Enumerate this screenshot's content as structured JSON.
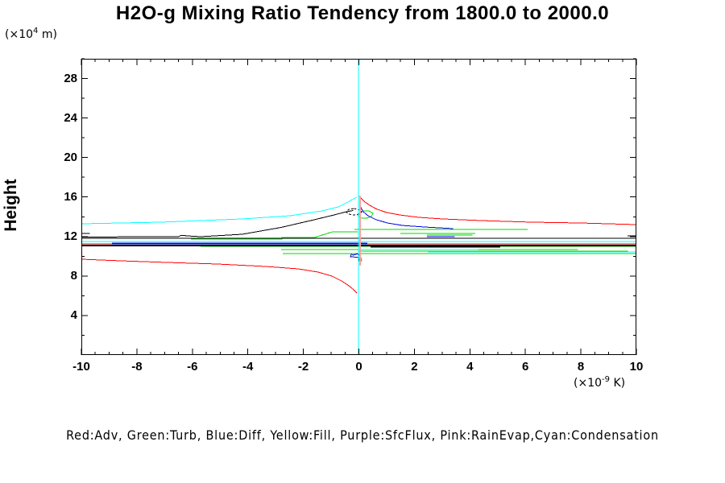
{
  "title": "H2O-g Mixing Ratio Tendency from 1800.0 to 2000.0",
  "y_unit": {
    "prefix": "(×10",
    "sup": "4",
    "suffix": " m)"
  },
  "x_unit": {
    "prefix": "(×10",
    "sup": "-9",
    "suffix": " K)"
  },
  "legend_text": "Red:Adv, Green:Turb, Blue:Diff, Yellow:Fill, Purple:SfcFlux, Pink:RainEvap,Cyan:Condensation",
  "colors": {
    "red": "#ff0000",
    "green": "#00d800",
    "blue": "#0000dd",
    "cyan": "#00ffff",
    "pink": "#ffa0a0",
    "black": "#000000",
    "axis": "#000000"
  },
  "chart_data": {
    "type": "line",
    "title": "H2O-g Mixing Ratio Tendency from 1800.0 to 2000.0",
    "xlabel": "(×10^-9 K)",
    "ylabel": "Height (×10^4 m)",
    "xlim": [
      -10,
      10
    ],
    "ylim": [
      0,
      30
    ],
    "grid": false,
    "legend_position": "bottom",
    "x_major_ticks": [
      -10,
      -8,
      -6,
      -4,
      -2,
      0,
      2,
      4,
      6,
      8,
      10
    ],
    "x_minor_step": 0.5,
    "y_major_ticks": [
      4,
      8,
      12,
      16,
      20,
      24,
      28
    ],
    "y_minor_ticks": [
      2,
      6,
      10,
      14,
      18,
      22,
      26,
      30
    ],
    "series": [
      {
        "name": "adv-upper-branch",
        "legend": "Adv",
        "color": "red",
        "w": 1,
        "points": [
          [
            0.01,
            16.14
          ],
          [
            0.1,
            15.82
          ],
          [
            0.22,
            15.49
          ],
          [
            0.39,
            15.16
          ],
          [
            0.65,
            14.76
          ],
          [
            1.0,
            14.43
          ],
          [
            1.49,
            14.18
          ],
          [
            2.16,
            13.94
          ],
          [
            3.03,
            13.78
          ],
          [
            4.48,
            13.61
          ],
          [
            6.23,
            13.45
          ],
          [
            7.97,
            13.37
          ],
          [
            10,
            13.21
          ]
        ]
      },
      {
        "name": "adv-lower-branch",
        "legend": "Adv",
        "color": "red",
        "w": 1,
        "points": [
          [
            -10,
            9.7
          ],
          [
            -8.58,
            9.54
          ],
          [
            -6.84,
            9.37
          ],
          [
            -5.09,
            9.21
          ],
          [
            -3.35,
            8.97
          ],
          [
            -2.19,
            8.72
          ],
          [
            -1.47,
            8.4
          ],
          [
            -0.97,
            7.99
          ],
          [
            -0.62,
            7.5
          ],
          [
            -0.36,
            7.01
          ],
          [
            -0.19,
            6.6
          ],
          [
            -0.07,
            6.28
          ]
        ]
      },
      {
        "name": "adv-band-line",
        "legend": "Adv",
        "color": "red",
        "w": 1,
        "points": [
          [
            -10,
            11.25
          ],
          [
            10,
            11.25
          ]
        ]
      },
      {
        "name": "turb-left-steps",
        "legend": "Turb",
        "color": "green",
        "w": 1,
        "points": [
          [
            -6.05,
            11.74
          ],
          [
            -2.77,
            11.74
          ],
          [
            -2.77,
            11.9
          ],
          [
            -1.6,
            11.9
          ],
          [
            -0.95,
            12.47
          ],
          [
            -0.04,
            12.47
          ]
        ]
      },
      {
        "name": "turb-center-loop",
        "legend": "Turb",
        "color": "green",
        "w": 1,
        "points": [
          [
            -0.04,
            14.1
          ],
          [
            0.04,
            14.43
          ],
          [
            0.19,
            14.59
          ],
          [
            0.36,
            14.59
          ],
          [
            0.51,
            14.35
          ],
          [
            0.45,
            14.02
          ],
          [
            0.28,
            13.86
          ],
          [
            0.1,
            13.86
          ],
          [
            -0.04,
            14.1
          ]
        ]
      },
      {
        "name": "turb-right-long",
        "legend": "Turb",
        "color": "green",
        "w": 1,
        "points": [
          [
            -0.16,
            12.72
          ],
          [
            6.08,
            12.72
          ]
        ]
      },
      {
        "name": "turb-right-step1",
        "legend": "Turb",
        "color": "green",
        "w": 1,
        "points": [
          [
            1.5,
            12.31
          ],
          [
            4.2,
            12.31
          ]
        ]
      },
      {
        "name": "turb-right-step2",
        "legend": "Turb",
        "color": "green",
        "w": 1,
        "points": [
          [
            2.45,
            12.15
          ],
          [
            4.1,
            12.15
          ]
        ]
      },
      {
        "name": "turb-band-1",
        "legend": "Turb",
        "color": "green",
        "w": 1,
        "points": [
          [
            -5.7,
            11.0
          ],
          [
            10,
            11.0
          ]
        ]
      },
      {
        "name": "turb-band-2",
        "legend": "Turb",
        "color": "green",
        "w": 1,
        "points": [
          [
            -2.8,
            10.68
          ],
          [
            7.9,
            10.68
          ]
        ]
      },
      {
        "name": "turb-band-3",
        "legend": "Turb",
        "color": "green",
        "w": 1,
        "points": [
          [
            0,
            10.51
          ],
          [
            9.7,
            10.51
          ]
        ]
      },
      {
        "name": "turb-band-4",
        "legend": "Turb",
        "color": "green",
        "w": 1,
        "points": [
          [
            -2.75,
            10.27
          ],
          [
            10,
            10.27
          ]
        ]
      },
      {
        "name": "turb-mini-loop",
        "legend": "Turb",
        "color": "green",
        "w": 1,
        "points": [
          [
            0.0,
            9.9
          ],
          [
            0.09,
            9.8
          ],
          [
            0.1,
            9.55
          ],
          [
            0.03,
            9.45
          ],
          [
            -0.02,
            9.6
          ],
          [
            0.0,
            9.9
          ]
        ]
      },
      {
        "name": "diff-center-descent",
        "legend": "Diff",
        "color": "blue",
        "w": 1,
        "points": [
          [
            0.04,
            15.41
          ],
          [
            0.07,
            14.92
          ],
          [
            0.16,
            14.51
          ],
          [
            0.33,
            14.1
          ],
          [
            0.62,
            13.7
          ],
          [
            1.03,
            13.37
          ],
          [
            1.58,
            13.12
          ],
          [
            2.37,
            12.96
          ],
          [
            3.4,
            12.8
          ]
        ]
      },
      {
        "name": "diff-right-step",
        "legend": "Diff",
        "color": "blue",
        "w": 1,
        "points": [
          [
            2.45,
            11.98
          ],
          [
            3.45,
            11.98
          ]
        ]
      },
      {
        "name": "diff-band-left",
        "legend": "Diff",
        "color": "blue",
        "w": 2,
        "points": [
          [
            -8.9,
            11.3
          ],
          [
            0.3,
            11.3
          ]
        ]
      },
      {
        "name": "diff-band-right",
        "legend": "Diff",
        "color": "blue",
        "w": 1,
        "points": [
          [
            0.45,
            11.05
          ],
          [
            5.1,
            11.05
          ]
        ]
      },
      {
        "name": "diff-down-spike",
        "legend": "Diff",
        "color": "blue",
        "w": 1,
        "points": [
          [
            0.04,
            10.68
          ],
          [
            0.04,
            10.05
          ],
          [
            -0.05,
            10.25
          ],
          [
            -0.2,
            10.12
          ],
          [
            -0.28,
            10.2
          ],
          [
            -0.3,
            9.95
          ],
          [
            -0.15,
            9.92
          ],
          [
            -0.02,
            9.88
          ],
          [
            0.02,
            9.55
          ],
          [
            0.04,
            9.3
          ]
        ]
      },
      {
        "name": "total-rising-curve",
        "legend": "",
        "color": "black",
        "w": 1,
        "points": [
          [
            -10,
            11.95
          ],
          [
            -6.5,
            11.98
          ],
          [
            -6.4,
            12.12
          ],
          [
            -6.1,
            12.05
          ],
          [
            -5.7,
            11.98
          ],
          [
            -4.2,
            12.23
          ],
          [
            -2.8,
            12.92
          ],
          [
            -1.6,
            13.7
          ],
          [
            -0.9,
            14.18
          ],
          [
            -0.45,
            14.51
          ],
          [
            -0.2,
            14.63
          ]
        ]
      },
      {
        "name": "total-dashed-loop",
        "legend": "",
        "color": "black",
        "w": 1,
        "dash": "3,2",
        "points": [
          [
            -0.18,
            14.83
          ],
          [
            0.02,
            14.72
          ],
          [
            0.1,
            14.5
          ],
          [
            0.02,
            14.28
          ],
          [
            -0.18,
            14.17
          ],
          [
            -0.38,
            14.28
          ],
          [
            -0.46,
            14.5
          ],
          [
            -0.38,
            14.72
          ],
          [
            -0.18,
            14.83
          ]
        ]
      },
      {
        "name": "total-band-line",
        "legend": "",
        "color": "black",
        "w": 1,
        "points": [
          [
            -10,
            11.82
          ],
          [
            10,
            11.82
          ]
        ]
      },
      {
        "name": "total-band-thick",
        "legend": "",
        "color": "black",
        "w": 2,
        "points": [
          [
            -10,
            11.1
          ],
          [
            10,
            11.1
          ]
        ]
      },
      {
        "name": "total-band-right-thick",
        "legend": "",
        "color": "black",
        "w": 2,
        "points": [
          [
            0.42,
            10.95
          ],
          [
            5.1,
            10.95
          ]
        ]
      },
      {
        "name": "total-right-short",
        "legend": "",
        "color": "black",
        "w": 1,
        "points": [
          [
            9.68,
            12.06
          ],
          [
            10,
            12.06
          ]
        ]
      },
      {
        "name": "total-left-short",
        "legend": "",
        "color": "black",
        "w": 1,
        "points": [
          [
            -10,
            12.31
          ],
          [
            -9.7,
            12.31
          ]
        ]
      },
      {
        "name": "condensation-curve",
        "legend": "Condensation",
        "color": "cyan",
        "w": 1,
        "points": [
          [
            -10,
            13.29
          ],
          [
            -7.13,
            13.45
          ],
          [
            -4.22,
            13.78
          ],
          [
            -2.48,
            14.1
          ],
          [
            -1.32,
            14.59
          ],
          [
            -0.74,
            15.0
          ],
          [
            -0.39,
            15.49
          ],
          [
            -0.19,
            15.82
          ],
          [
            -0.07,
            15.98
          ]
        ]
      },
      {
        "name": "condensation-band-1",
        "legend": "Condensation",
        "color": "cyan",
        "w": 1,
        "points": [
          [
            -10,
            11.49
          ],
          [
            10,
            11.49
          ]
        ]
      },
      {
        "name": "condensation-band-2",
        "legend": "Condensation",
        "color": "cyan",
        "w": 1,
        "points": [
          [
            0,
            10.68
          ],
          [
            4.3,
            10.68
          ]
        ]
      },
      {
        "name": "condensation-band-3",
        "legend": "Condensation",
        "color": "cyan",
        "w": 1,
        "points": [
          [
            2.5,
            10.43
          ],
          [
            10,
            10.43
          ]
        ]
      },
      {
        "name": "condensation-zero-line",
        "legend": "Condensation",
        "color": "cyan",
        "w": 1,
        "points": [
          [
            -0.02,
            0
          ],
          [
            -0.02,
            30
          ]
        ]
      },
      {
        "name": "rainevap-line",
        "legend": "RainEvap",
        "color": "pink",
        "w": 2,
        "points": [
          [
            0.05,
            9.05
          ],
          [
            0.05,
            16.1
          ]
        ]
      }
    ]
  }
}
